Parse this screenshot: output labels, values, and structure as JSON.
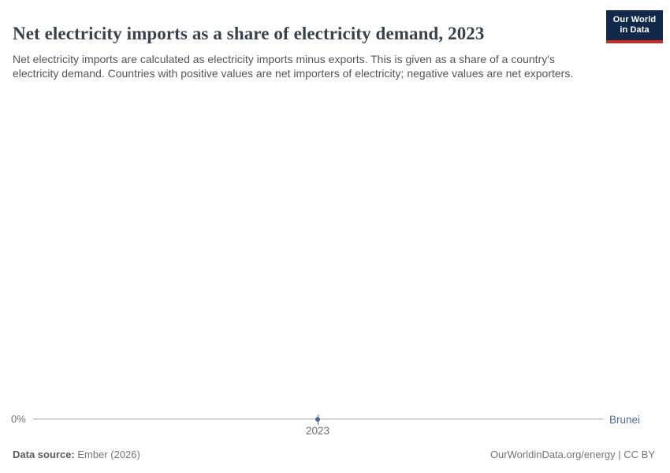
{
  "title": "Net electricity imports as a share of electricity demand, 2023",
  "subtitle": "Net electricity imports are calculated as electricity imports minus exports. This is given as a share of a country's electricity demand. Countries with positive values are net importers of electricity; negative values are net exporters.",
  "logo": {
    "line1": "Our World",
    "line2": "in Data"
  },
  "chart_data": {
    "type": "line",
    "title": "Net electricity imports as a share of electricity demand, 2023",
    "x": [
      2023
    ],
    "x_tick_labels": [
      "2023"
    ],
    "y_tick_labels": [
      "0%"
    ],
    "series": [
      {
        "name": "Brunei",
        "values": [
          0
        ]
      }
    ],
    "xlabel": "",
    "ylabel": "",
    "grid": "single horizontal gridline at 0%",
    "legend_position": "right of line end",
    "line_color": "#4C6A9C",
    "note": "single year shown, point plotted at 0% on the zero gridline"
  },
  "axis": {
    "y_zero_label": "0%",
    "x_tick_label": "2023"
  },
  "entity": {
    "label": "Brunei"
  },
  "footer": {
    "source_label": "Data source:",
    "source_value": " Ember (2026)",
    "credit": "OurWorldinData.org/energy | CC BY"
  },
  "colors": {
    "accent_blue": "#4C6A9C",
    "gridline_gray": "#a3a3a3",
    "logo_navy": "#12294B",
    "logo_red": "#CB2D23",
    "title_color": "#3a414a",
    "subtitle_color": "#555555",
    "footer_color": "#757575"
  }
}
